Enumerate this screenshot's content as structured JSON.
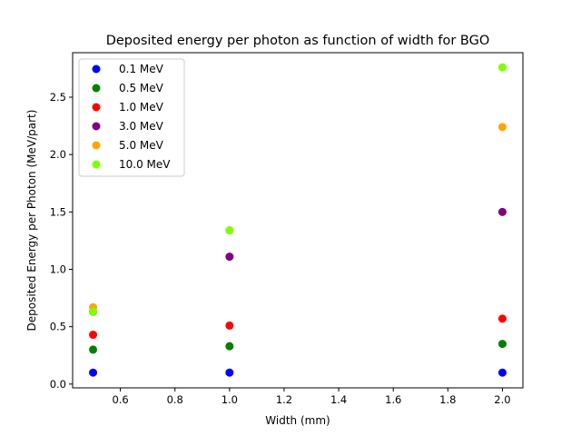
{
  "chart_data": {
    "type": "scatter",
    "title": "Deposited energy per photon as function of width for BGO",
    "xlabel": "Width (mm)",
    "ylabel": "Deposited Energy per Photon (MeV/part)",
    "xlim": [
      0.425,
      2.075
    ],
    "ylim": [
      -0.033,
      2.888
    ],
    "x_ticks": [
      "0.6",
      "0.8",
      "1.0",
      "1.2",
      "1.4",
      "1.6",
      "1.8",
      "2.0"
    ],
    "y_ticks": [
      "0.0",
      "0.5",
      "1.0",
      "1.5",
      "2.0",
      "2.5"
    ],
    "grid": false,
    "legend_position": "top-left",
    "x": [
      0.5,
      1.0,
      2.0
    ],
    "series": [
      {
        "name": "0.1 MeV",
        "color": "#0000ff",
        "values": [
          0.1,
          0.1,
          0.1
        ]
      },
      {
        "name": "0.5 MeV",
        "color": "#008000",
        "values": [
          0.3,
          0.33,
          0.35
        ]
      },
      {
        "name": "1.0 MeV",
        "color": "#ff0000",
        "values": [
          0.43,
          0.51,
          0.57
        ]
      },
      {
        "name": "3.0 MeV",
        "color": "#800080",
        "values": [
          0.63,
          1.11,
          1.5
        ]
      },
      {
        "name": "5.0 MeV",
        "color": "#ffa500",
        "values": [
          0.67,
          1.34,
          2.24
        ]
      },
      {
        "name": "10.0 MeV",
        "color": "#7fff00",
        "values": [
          0.63,
          1.34,
          2.76
        ]
      }
    ]
  }
}
